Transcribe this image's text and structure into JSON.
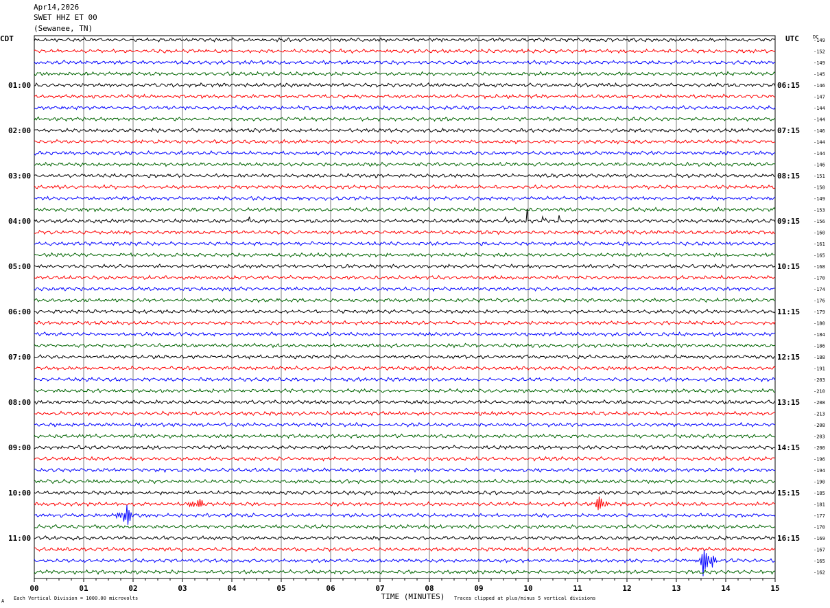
{
  "header": {
    "date": "Apr14,2026",
    "station": "SWET HHZ ET 00",
    "location": "(Sewanee, TN)"
  },
  "labels": {
    "left_tz": "CDT",
    "right_tz": "UTC",
    "dc_label": "DC",
    "x_axis_title": "TIME (MINUTES)",
    "scale_note": "Each Vertical Division = 1000.00 microvolts",
    "clip_note": "Traces clipped at plus/minus 5 vertical divisions",
    "corner_mark": "A"
  },
  "colors": {
    "trace_cycle": [
      "#000000",
      "#ff0000",
      "#0000ff",
      "#006400"
    ],
    "grid": "#7f7f7f"
  },
  "chart_data": {
    "type": "line",
    "title": "SWET HHZ ET 00",
    "xlabel": "TIME (MINUTES)",
    "ylabel": "",
    "xlim": [
      0,
      15
    ],
    "x_ticks": [
      "00",
      "01",
      "02",
      "03",
      "04",
      "05",
      "06",
      "07",
      "08",
      "09",
      "10",
      "11",
      "12",
      "13",
      "14",
      "15"
    ],
    "traces_per_hour": 4,
    "trace_count": 48,
    "left_hour_labels": [
      "01:00",
      "02:00",
      "03:00",
      "04:00",
      "05:00",
      "06:00",
      "07:00",
      "08:00",
      "09:00",
      "10:00",
      "11:00"
    ],
    "right_hour_labels": [
      "06:15",
      "07:15",
      "08:15",
      "09:15",
      "10:15",
      "11:15",
      "12:15",
      "13:15",
      "14:15",
      "15:15",
      "16:15"
    ],
    "dc_offsets": [
      -149,
      -152,
      -149,
      -145,
      -146,
      -147,
      -144,
      -144,
      -146,
      -144,
      -144,
      -146,
      -151,
      -150,
      -149,
      -153,
      -156,
      -160,
      -161,
      -165,
      -168,
      -170,
      -174,
      -176,
      -179,
      -180,
      -184,
      -186,
      -188,
      -191,
      -203,
      -210,
      -208,
      -213,
      -208,
      -203,
      -200,
      -196,
      -194,
      -190,
      -185,
      -181,
      -177,
      -170,
      -169,
      -167,
      -165,
      -162
    ],
    "events": [
      {
        "trace": 16,
        "minute": 4.35,
        "amplitude": 1.0,
        "kind": "spike"
      },
      {
        "trace": 16,
        "minute": 9.55,
        "amplitude": 0.7,
        "kind": "spike"
      },
      {
        "trace": 16,
        "minute": 9.98,
        "amplitude": 2.0,
        "kind": "spike"
      },
      {
        "trace": 16,
        "minute": 10.3,
        "amplitude": 0.8,
        "kind": "spike"
      },
      {
        "trace": 16,
        "minute": 10.35,
        "amplitude": 0.6,
        "kind": "spike"
      },
      {
        "trace": 16,
        "minute": 10.62,
        "amplitude": 0.8,
        "kind": "spike"
      },
      {
        "trace": 16,
        "minute": 11.55,
        "amplitude": 0.4,
        "kind": "spike"
      },
      {
        "trace": 41,
        "minute": 3.3,
        "amplitude": 0.8,
        "kind": "burst"
      },
      {
        "trace": 41,
        "minute": 11.45,
        "amplitude": 1.0,
        "kind": "burst"
      },
      {
        "trace": 42,
        "minute": 1.85,
        "amplitude": 1.6,
        "kind": "burst"
      },
      {
        "trace": 46,
        "minute": 13.6,
        "amplitude": 2.4,
        "kind": "burst"
      }
    ]
  }
}
